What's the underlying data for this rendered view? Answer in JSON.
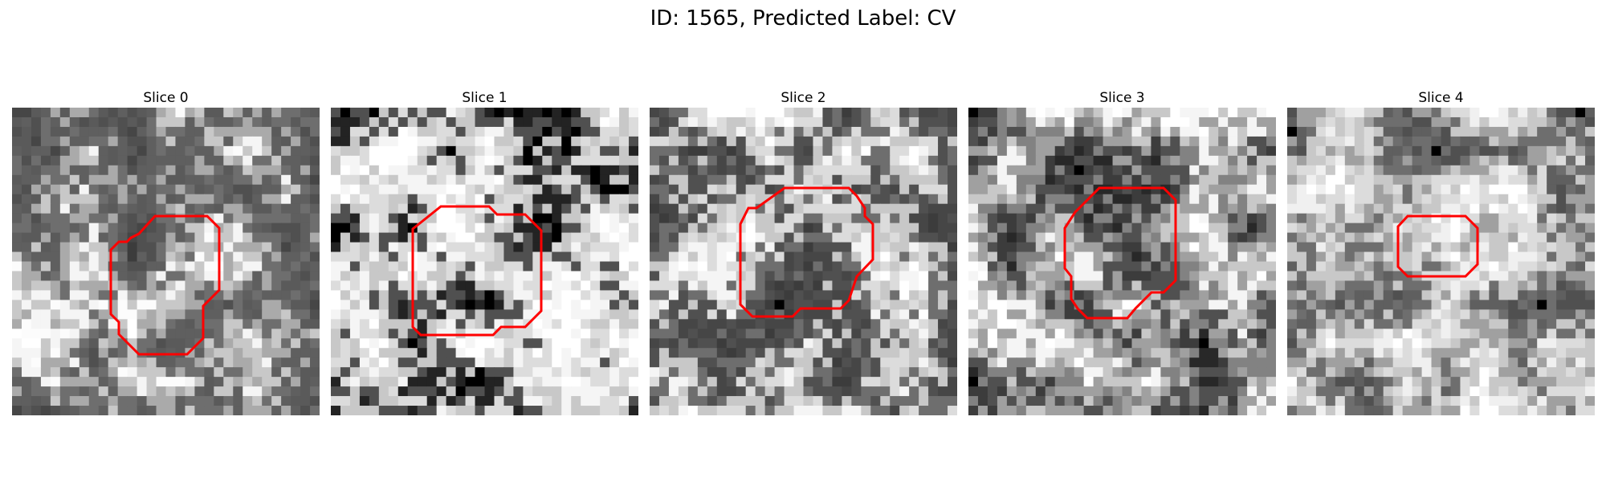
{
  "figure": {
    "title": "ID: 1565, Predicted Label: CV"
  },
  "colors": {
    "contour": "#ff0000"
  },
  "slices": [
    {
      "label": "Slice 0"
    },
    {
      "label": "Slice 1"
    },
    {
      "label": "Slice 2"
    },
    {
      "label": "Slice 3"
    },
    {
      "label": "Slice 4"
    }
  ]
}
